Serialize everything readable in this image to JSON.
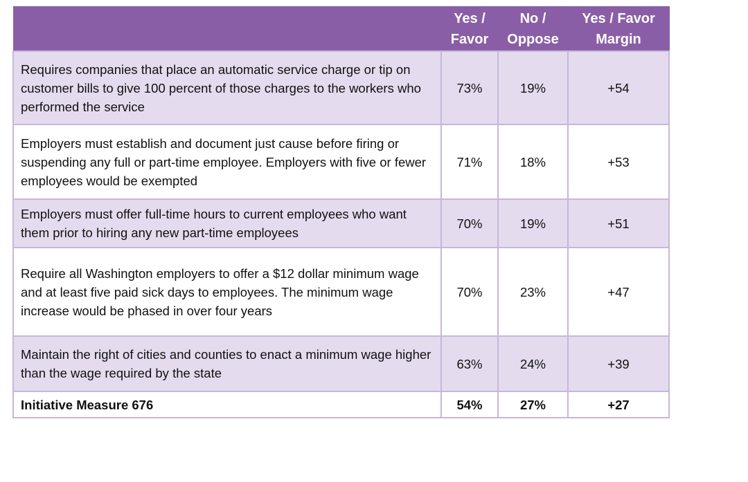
{
  "table": {
    "headers": {
      "description": "",
      "yes_line1": "Yes /",
      "yes_line2": "Favor",
      "no_line1": "No /",
      "no_line2": "Oppose",
      "margin_line1": "Yes  / Favor",
      "margin_line2": "Margin"
    },
    "rows": [
      {
        "description": "Requires companies that place an automatic service charge or tip on customer bills to give 100 percent of those charges to the workers who performed the service",
        "yes": "73%",
        "no": "19%",
        "margin": "+54"
      },
      {
        "description": "Employers must establish and document just cause before firing or suspending any full or part-time employee.  Employers with five or fewer employees would be exempted",
        "yes": "71%",
        "no": "18%",
        "margin": "+53"
      },
      {
        "description": "Employers must offer full-time hours to current employees who want them prior to hiring any new part-time employees",
        "yes": "70%",
        "no": "19%",
        "margin": "+51"
      },
      {
        "description": "Require all Washington employers to offer a $12 dollar minimum wage and at least five paid sick days to employees.  The minimum wage increase would be phased in over four years",
        "yes": "70%",
        "no": "23%",
        "margin": "+47"
      },
      {
        "description": "Maintain the right of cities and counties to enact a minimum wage higher than the wage required by the state",
        "yes": "63%",
        "no": "24%",
        "margin": "+39"
      },
      {
        "description": "Initiative Measure 676",
        "yes": "54%",
        "no": "27%",
        "margin": "+27"
      }
    ]
  },
  "colors": {
    "header_bg": "#8a5ea6",
    "header_text": "#ffffff",
    "row_shade": "#e5dbef",
    "border": "#c7b6d9"
  }
}
